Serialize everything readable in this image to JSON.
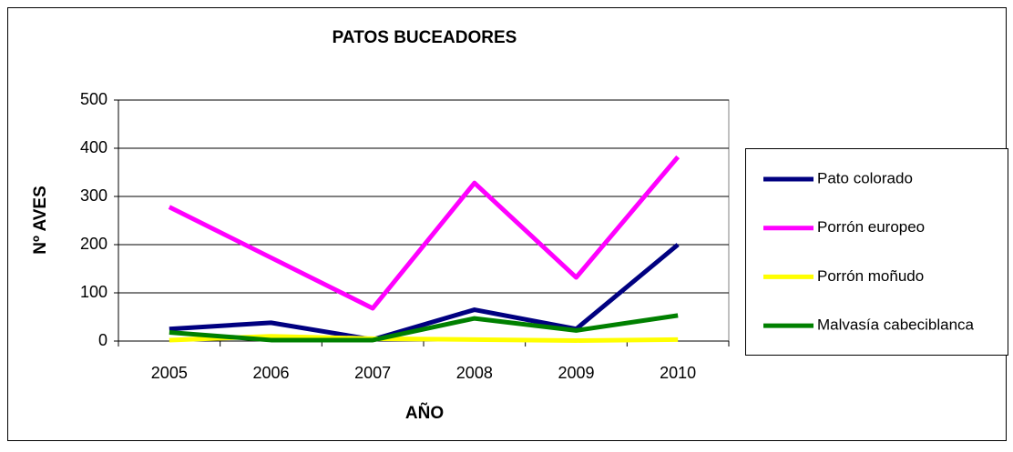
{
  "chart_data": {
    "type": "line",
    "title": "PATOS BUCEADORES",
    "x_label": "AÑO",
    "y_label": "Nº AVES",
    "categories": [
      "2005",
      "2006",
      "2007",
      "2008",
      "2009",
      "2010"
    ],
    "series": [
      {
        "name": "Pato colorado",
        "color": "#000080",
        "values": [
          25,
          38,
          3,
          65,
          25,
          200
        ]
      },
      {
        "name": "Porrón europeo",
        "color": "#ff00ff",
        "values": [
          278,
          173,
          68,
          328,
          132,
          382
        ]
      },
      {
        "name": "Porrón moñudo",
        "color": "#ffff00",
        "values": [
          2,
          10,
          5,
          3,
          1,
          3
        ]
      },
      {
        "name": "Malvasía cabeciblanca",
        "color": "#008000",
        "values": [
          18,
          2,
          2,
          47,
          22,
          53
        ]
      }
    ],
    "ylim": [
      0,
      500
    ],
    "yticks": [
      0,
      100,
      200,
      300,
      400,
      500
    ],
    "grid": true,
    "legend": "right"
  }
}
